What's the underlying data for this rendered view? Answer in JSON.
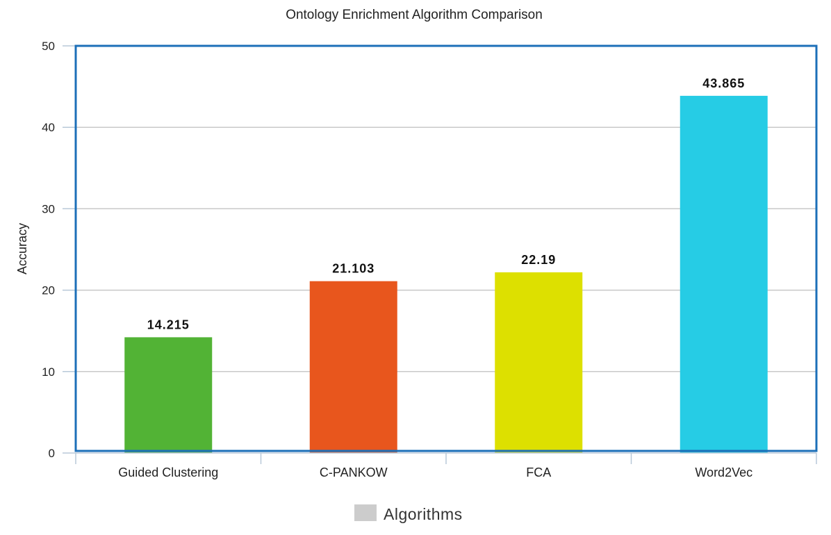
{
  "chart_data": {
    "type": "bar",
    "title": "Ontology Enrichment Algorithm Comparison",
    "xlabel": "",
    "ylabel": "Accuracy",
    "categories": [
      "Guided Clustering",
      "C-PANKOW",
      "FCA",
      "Word2Vec"
    ],
    "values": [
      14.215,
      21.103,
      22.19,
      43.865
    ],
    "value_labels": [
      "14.215",
      "21.103",
      "22.19",
      "43.865"
    ],
    "bar_colors": [
      "#52b335",
      "#e8561d",
      "#dde000",
      "#26cce5"
    ],
    "ylim": [
      0,
      50
    ],
    "yticks": [
      0,
      10,
      20,
      30,
      40,
      50
    ],
    "ytick_labels": [
      "0",
      "10",
      "20",
      "30",
      "40",
      "50"
    ],
    "grid": true,
    "legend": {
      "placement": "bottom-center",
      "entries": [
        {
          "label": "Algorithms",
          "color": "#cccccc"
        }
      ]
    },
    "plot_border_color": "#1c6fb8",
    "grid_color": "#c8c8c8",
    "axis_color": "#b8c8d8"
  }
}
